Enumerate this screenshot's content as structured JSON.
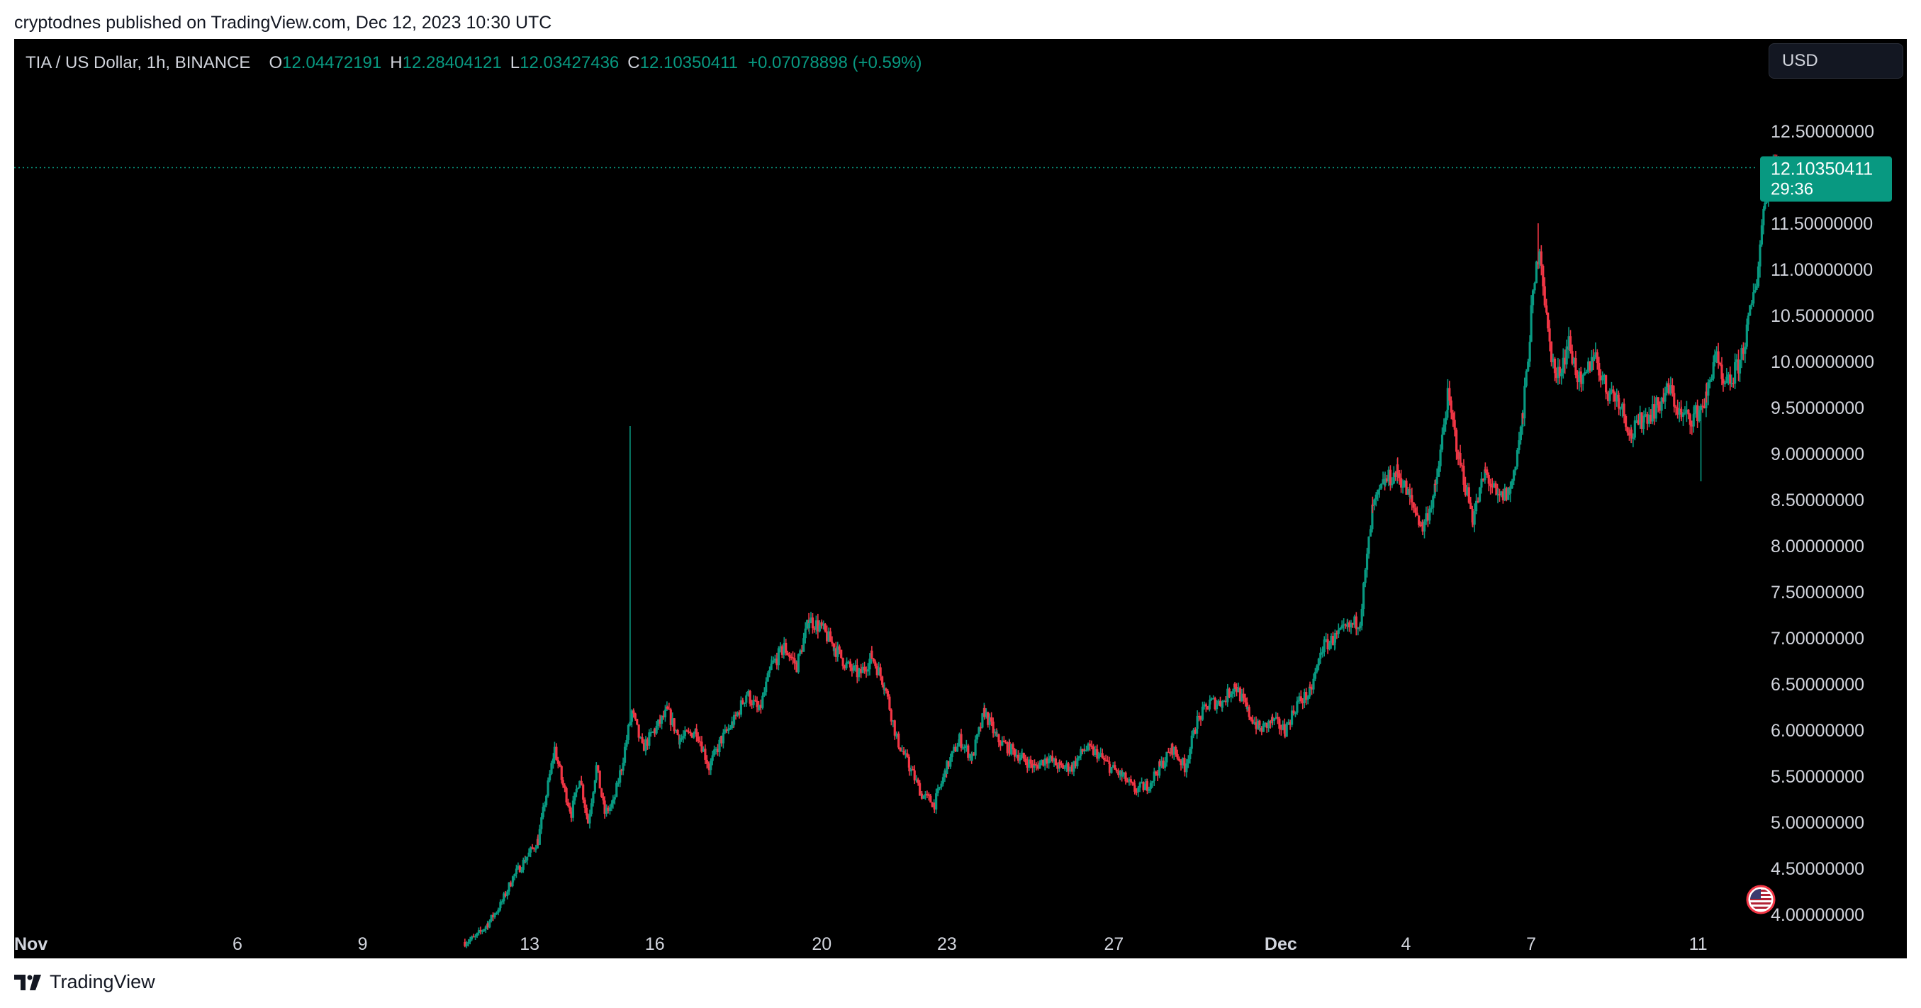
{
  "publisher_line": "cryptodnes published on TradingView.com, Dec 12, 2023 10:30 UTC",
  "legend": {
    "symbol": "TIA / US Dollar, 1h, BINANCE",
    "open_label": "O",
    "open": "12.04472191",
    "high_label": "H",
    "high": "12.28404121",
    "low_label": "L",
    "low": "12.03427436",
    "close_label": "C",
    "close": "12.10350411",
    "change": "+0.07078898 (+0.59%)"
  },
  "currency_button": {
    "label": "USD"
  },
  "price_marker": {
    "price": "12.10350411",
    "countdown": "29:36"
  },
  "brand": {
    "name": "TradingView"
  },
  "colors": {
    "up": "#089981",
    "down": "#f23645",
    "background": "#000000",
    "axis_text": "#d1d4dc"
  },
  "icons": {
    "flag": "us-flag-icon",
    "logo": "tradingview-logo-icon"
  },
  "chart_data": {
    "type": "candlestick",
    "interval": "1h",
    "ylim": [
      3.45,
      12.85
    ],
    "y_ticks": [
      "12.50000000",
      "12.00000000",
      "11.50000000",
      "11.00000000",
      "10.50000000",
      "10.00000000",
      "9.50000000",
      "9.00000000",
      "8.50000000",
      "8.00000000",
      "7.50000000",
      "7.00000000",
      "6.50000000",
      "6.00000000",
      "5.50000000",
      "5.00000000",
      "4.50000000",
      "4.00000000"
    ],
    "x_ticks": [
      {
        "day": 0,
        "label": "Nov",
        "bold": true
      },
      {
        "day": 5,
        "label": "6"
      },
      {
        "day": 8,
        "label": "9"
      },
      {
        "day": 12,
        "label": "13"
      },
      {
        "day": 15,
        "label": "16"
      },
      {
        "day": 19,
        "label": "20"
      },
      {
        "day": 22,
        "label": "23"
      },
      {
        "day": 26,
        "label": "27"
      },
      {
        "day": 30,
        "label": "Dec",
        "bold": true
      },
      {
        "day": 33,
        "label": "4"
      },
      {
        "day": 36,
        "label": "7"
      },
      {
        "day": 40,
        "label": "11"
      }
    ],
    "x_range_days": [
      -0.35,
      45.0
    ],
    "last_price": 12.10350411,
    "anchors": [
      [
        10.45,
        3.7
      ],
      [
        10.7,
        3.75
      ],
      [
        11.0,
        3.9
      ],
      [
        11.3,
        4.1
      ],
      [
        11.6,
        4.4
      ],
      [
        11.9,
        4.6
      ],
      [
        12.2,
        4.8
      ],
      [
        12.4,
        5.3
      ],
      [
        12.6,
        5.8
      ],
      [
        12.8,
        5.4
      ],
      [
        13.0,
        5.1
      ],
      [
        13.2,
        5.5
      ],
      [
        13.4,
        5.0
      ],
      [
        13.6,
        5.6
      ],
      [
        13.8,
        5.1
      ],
      [
        14.0,
        5.2
      ],
      [
        14.2,
        5.6
      ],
      [
        14.45,
        6.2
      ],
      [
        14.7,
        5.8
      ],
      [
        15.0,
        6.0
      ],
      [
        15.3,
        6.2
      ],
      [
        15.6,
        5.9
      ],
      [
        16.0,
        6.0
      ],
      [
        16.3,
        5.6
      ],
      [
        16.6,
        5.9
      ],
      [
        16.9,
        6.1
      ],
      [
        17.2,
        6.4
      ],
      [
        17.5,
        6.2
      ],
      [
        17.8,
        6.7
      ],
      [
        18.1,
        6.9
      ],
      [
        18.4,
        6.7
      ],
      [
        18.7,
        7.2
      ],
      [
        19.0,
        7.1
      ],
      [
        19.3,
        6.9
      ],
      [
        19.6,
        6.7
      ],
      [
        19.9,
        6.6
      ],
      [
        20.2,
        6.8
      ],
      [
        20.5,
        6.5
      ],
      [
        20.8,
        5.9
      ],
      [
        21.1,
        5.6
      ],
      [
        21.4,
        5.3
      ],
      [
        21.7,
        5.2
      ],
      [
        22.0,
        5.6
      ],
      [
        22.3,
        5.9
      ],
      [
        22.6,
        5.7
      ],
      [
        22.9,
        6.2
      ],
      [
        23.2,
        5.9
      ],
      [
        23.5,
        5.8
      ],
      [
        23.8,
        5.7
      ],
      [
        24.1,
        5.6
      ],
      [
        24.4,
        5.7
      ],
      [
        24.7,
        5.6
      ],
      [
        25.0,
        5.6
      ],
      [
        25.3,
        5.8
      ],
      [
        25.6,
        5.75
      ],
      [
        25.9,
        5.6
      ],
      [
        26.2,
        5.5
      ],
      [
        26.5,
        5.35
      ],
      [
        26.8,
        5.4
      ],
      [
        27.1,
        5.6
      ],
      [
        27.4,
        5.8
      ],
      [
        27.7,
        5.6
      ],
      [
        28.0,
        6.1
      ],
      [
        28.3,
        6.3
      ],
      [
        28.6,
        6.3
      ],
      [
        28.9,
        6.5
      ],
      [
        29.2,
        6.2
      ],
      [
        29.5,
        6.0
      ],
      [
        29.8,
        6.1
      ],
      [
        30.1,
        6.0
      ],
      [
        30.4,
        6.3
      ],
      [
        30.7,
        6.4
      ],
      [
        31.0,
        6.9
      ],
      [
        31.3,
        7.0
      ],
      [
        31.6,
        7.1
      ],
      [
        31.9,
        7.2
      ],
      [
        32.2,
        8.4
      ],
      [
        32.5,
        8.7
      ],
      [
        32.8,
        8.8
      ],
      [
        33.1,
        8.5
      ],
      [
        33.4,
        8.2
      ],
      [
        33.7,
        8.6
      ],
      [
        34.0,
        9.6
      ],
      [
        34.3,
        8.9
      ],
      [
        34.6,
        8.3
      ],
      [
        34.9,
        8.8
      ],
      [
        35.2,
        8.5
      ],
      [
        35.5,
        8.6
      ],
      [
        35.8,
        9.4
      ],
      [
        36.0,
        10.5
      ],
      [
        36.2,
        11.3
      ],
      [
        36.4,
        10.3
      ],
      [
        36.6,
        9.8
      ],
      [
        36.9,
        10.2
      ],
      [
        37.2,
        9.7
      ],
      [
        37.5,
        10.1
      ],
      [
        37.8,
        9.7
      ],
      [
        38.1,
        9.6
      ],
      [
        38.4,
        9.2
      ],
      [
        38.7,
        9.4
      ],
      [
        39.0,
        9.5
      ],
      [
        39.3,
        9.7
      ],
      [
        39.6,
        9.4
      ],
      [
        39.9,
        9.4
      ],
      [
        40.2,
        9.6
      ],
      [
        40.4,
        10.1
      ],
      [
        40.6,
        9.7
      ],
      [
        40.8,
        9.8
      ],
      [
        41.0,
        10.0
      ],
      [
        41.2,
        10.4
      ],
      [
        41.4,
        10.9
      ],
      [
        41.6,
        11.8
      ],
      [
        41.8,
        12.2
      ],
      [
        41.95,
        12.1
      ]
    ],
    "spikes": [
      {
        "day": 14.4,
        "high": 9.3
      },
      {
        "day": 36.15,
        "high": 11.5
      },
      {
        "day": 40.05,
        "low": 8.7
      }
    ]
  }
}
